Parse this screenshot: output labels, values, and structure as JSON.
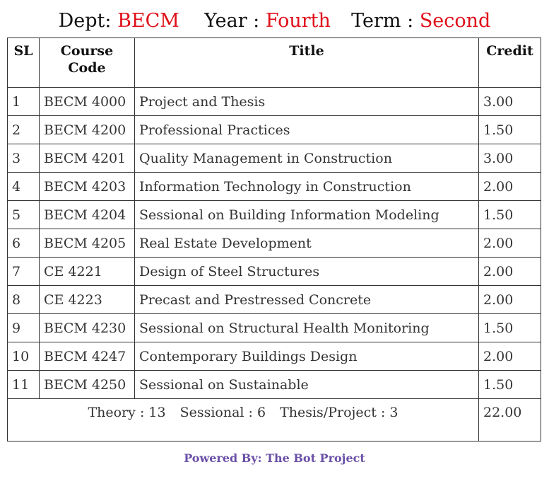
{
  "header": {
    "dept_label": "Dept:",
    "dept_value": "BECM",
    "year_label": "Year :",
    "year_value": "Fourth",
    "term_label": "Term :",
    "term_value": "Second"
  },
  "table": {
    "columns": {
      "sl": "SL",
      "code": "Course Code",
      "title": "Title",
      "credit": "Credit"
    },
    "rows": [
      {
        "sl": "1",
        "code": "BECM 4000",
        "title": "Project and Thesis",
        "credit": "3.00"
      },
      {
        "sl": "2",
        "code": "BECM 4200",
        "title": "Professional Practices",
        "credit": "1.50"
      },
      {
        "sl": "3",
        "code": "BECM 4201",
        "title": "Quality Management in Construction",
        "credit": "3.00"
      },
      {
        "sl": "4",
        "code": "BECM 4203",
        "title": "Information Technology in Construction",
        "credit": "2.00"
      },
      {
        "sl": "5",
        "code": "BECM 4204",
        "title": "Sessional on Building Information Modeling",
        "credit": "1.50"
      },
      {
        "sl": "6",
        "code": "BECM 4205",
        "title": "Real Estate Development",
        "credit": "2.00"
      },
      {
        "sl": "7",
        "code": "CE 4221",
        "title": "Design of Steel Structures",
        "credit": "2.00"
      },
      {
        "sl": "8",
        "code": "CE 4223",
        "title": "Precast and Prestressed Concrete",
        "credit": "2.00"
      },
      {
        "sl": "9",
        "code": "BECM 4230",
        "title": "Sessional on Structural Health Monitoring",
        "credit": "1.50"
      },
      {
        "sl": "10",
        "code": "BECM 4247",
        "title": "Contemporary Buildings Design",
        "credit": "2.00"
      },
      {
        "sl": "11",
        "code": "BECM 4250",
        "title": "Sessional on Sustainable",
        "credit": "1.50"
      }
    ],
    "summary": {
      "theory": "Theory : 13",
      "sessional": "Sessional : 6",
      "thesis_project": "Thesis/Project : 3",
      "total_credit": "22.00"
    }
  },
  "footer": {
    "powered_by": "Powered By: The Bot Project"
  },
  "colors": {
    "header_value": "#e0101a",
    "footer_text": "#6a50a7",
    "border": "#333333"
  }
}
